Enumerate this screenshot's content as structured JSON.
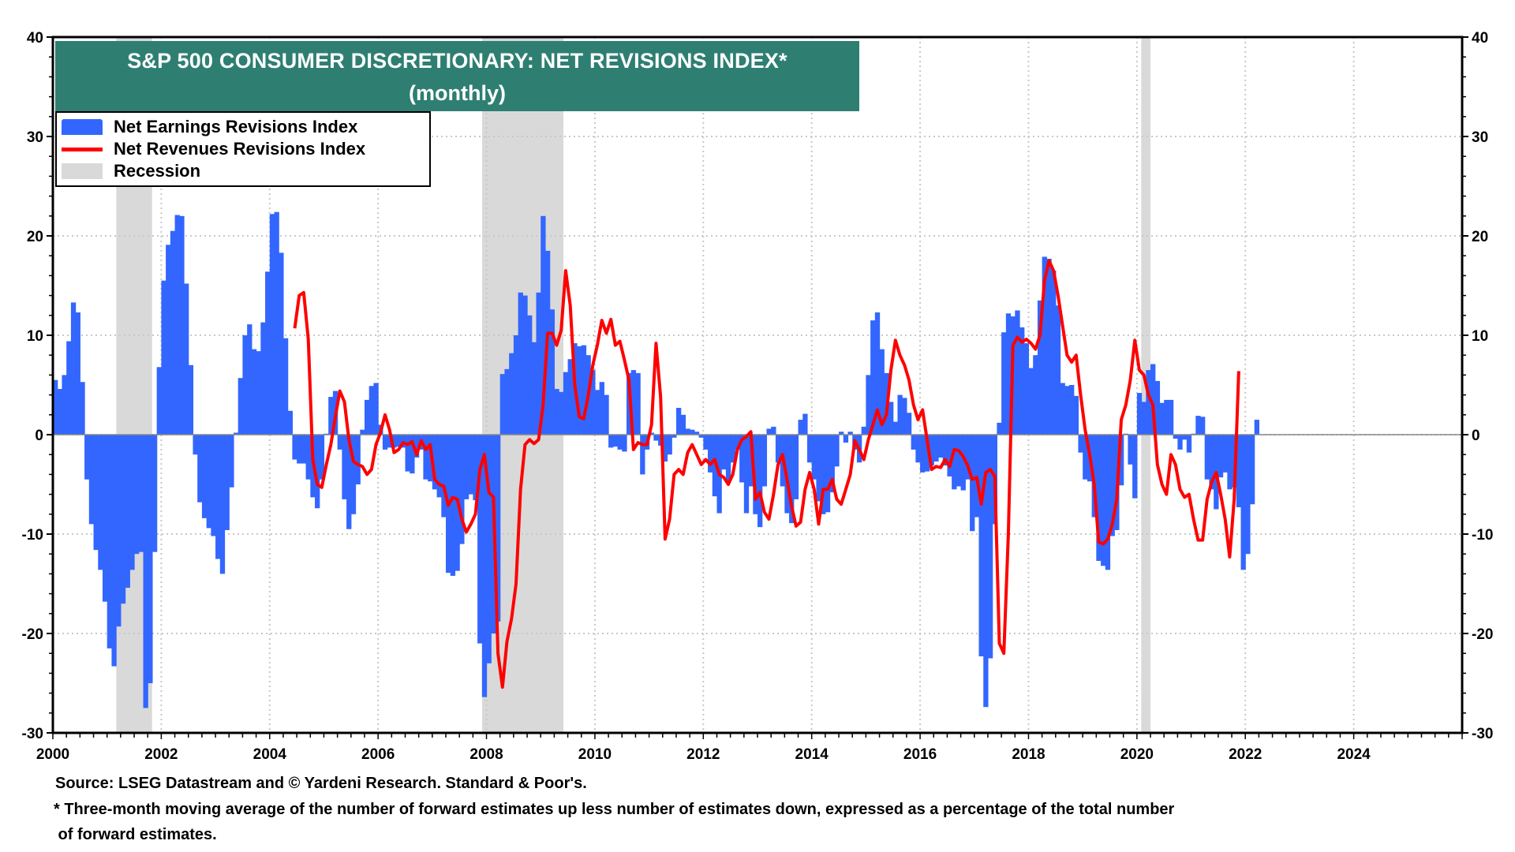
{
  "chart_data": {
    "type": "bar",
    "title": "S&P 500 CONSUMER DISCRETIONARY: NET REVISIONS INDEX*",
    "subtitle": "(monthly)",
    "xlabel": "",
    "ylabel": "",
    "ylim": [
      -30,
      40
    ],
    "xlim": [
      2000.0,
      2026.0
    ],
    "grid": true,
    "legend_position": "top-left",
    "yticks": [
      -30,
      -20,
      -10,
      0,
      10,
      20,
      30,
      40
    ],
    "ytick_labels": [
      "-30",
      "-20",
      "-10",
      "0",
      "10",
      "20",
      "30",
      "40"
    ],
    "xticks": [
      2000,
      2002,
      2004,
      2006,
      2008,
      2010,
      2012,
      2014,
      2016,
      2018,
      2020,
      2022,
      2024
    ],
    "xtick_labels": [
      "2000",
      "2002",
      "2004",
      "2006",
      "2008",
      "2010",
      "2012",
      "2014",
      "2016",
      "2018",
      "2020",
      "2022",
      "2024"
    ],
    "legend": [
      {
        "name": "Net Earnings Revisions Index",
        "type": "bar",
        "color": "#3366ff"
      },
      {
        "name": "Net Revenues Revisions Index",
        "type": "line",
        "color": "#ff0000"
      },
      {
        "name": "Recession",
        "type": "shade",
        "color": "#d9d9d9"
      }
    ],
    "recessions": [
      {
        "start": 2001.17,
        "end": 2001.83
      },
      {
        "start": 2007.92,
        "end": 2009.42
      },
      {
        "start": 2020.08,
        "end": 2020.25
      }
    ],
    "series": [
      {
        "name": "Net Earnings Revisions Index",
        "type": "bar",
        "start": 2000.0,
        "frequency": "monthly",
        "values": [
          5.5,
          4.6,
          6.0,
          9.4,
          13.3,
          12.3,
          5.3,
          -4.5,
          -9.0,
          -11.6,
          -13.6,
          -16.8,
          -21.5,
          -23.3,
          -19.3,
          -17.0,
          -15.4,
          -13.6,
          -12.0,
          -11.8,
          -27.5,
          -25.0,
          -11.8,
          6.8,
          15.5,
          19.1,
          20.5,
          22.1,
          22.0,
          15.2,
          7.0,
          -2.0,
          -6.8,
          -8.4,
          -9.4,
          -10.2,
          -12.5,
          -14.0,
          -9.6,
          -5.3,
          0.2,
          5.7,
          10.0,
          11.1,
          8.6,
          8.4,
          11.3,
          16.4,
          22.2,
          22.4,
          18.3,
          9.7,
          2.4,
          -2.5,
          -2.9,
          -2.9,
          -4.5,
          -6.3,
          -7.4,
          -4.5,
          0.1,
          3.8,
          4.4,
          -1.5,
          -6.5,
          -9.5,
          -8.0,
          -5.0,
          0.5,
          3.5,
          4.9,
          5.2,
          1.0,
          -1.5,
          -1.3,
          -1.3,
          -1.2,
          -1.3,
          -3.7,
          -3.9,
          -2.3,
          -1.5,
          -4.5,
          -4.7,
          -5.5,
          -6.3,
          -8.3,
          -13.9,
          -14.2,
          -13.7,
          -11.0,
          -6.5,
          -6.0,
          -6.6,
          -21.0,
          -26.4,
          -23.0,
          -20.0,
          -18.8,
          6.1,
          6.6,
          8.2,
          10.0,
          14.3,
          14.0,
          12.0,
          9.3,
          14.3,
          22.0,
          18.5,
          12.6,
          4.6,
          4.3,
          6.3,
          7.6,
          9.2,
          8.9,
          9.0,
          8.0,
          6.5,
          4.5,
          5.3,
          4.0,
          -1.3,
          -1.2,
          -1.5,
          -1.7,
          6.2,
          6.5,
          6.2,
          -4.0,
          -1.5,
          0.2,
          -0.6,
          -1.1,
          -2.7,
          -2.0,
          -0.3,
          2.7,
          2.0,
          0.6,
          0.5,
          0.3,
          -0.3,
          -1.5,
          -3.8,
          -6.2,
          -7.9,
          -3.5,
          -4.8,
          -2.8,
          -1.5,
          -4.8,
          -7.9,
          -5.2,
          -8.0,
          -9.3,
          -5.2,
          0.6,
          0.8,
          -2.8,
          -5.2,
          -7.9,
          -8.9,
          -6.5,
          1.5,
          2.1,
          -2.8,
          -4.5,
          -6.7,
          -8.0,
          -7.8,
          -5.8,
          -3.2,
          0.3,
          -0.8,
          0.3,
          -1.5,
          -2.8,
          0.8,
          6.0,
          11.5,
          12.3,
          8.6,
          6.2,
          3.3,
          1.3,
          4.0,
          3.7,
          2.2,
          -1.5,
          -2.8,
          -3.8,
          -3.7,
          -3.1,
          -2.7,
          -2.3,
          -3.1,
          -4.2,
          -5.5,
          -5.2,
          -5.6,
          -4.5,
          -9.7,
          -8.3,
          -22.3,
          -27.4,
          -22.5,
          -9.0,
          1.2,
          10.3,
          12.2,
          11.9,
          12.5,
          10.8,
          9.2,
          6.7,
          8.0,
          13.5,
          17.9,
          17.7,
          16.5,
          13.0,
          5.2,
          4.9,
          5.0,
          3.9,
          -1.8,
          -4.5,
          -4.7,
          -8.3,
          -12.7,
          -13.2,
          -13.6,
          -10.2,
          -9.6,
          -5.1,
          0.1,
          -3.0,
          -6.4,
          4.2,
          3.3,
          6.5,
          7.1,
          5.4,
          3.2,
          3.5,
          3.5,
          -0.4,
          -1.5,
          -0.5,
          -1.8,
          0.1,
          1.9,
          1.8,
          -4.5,
          -5.5,
          -7.5,
          -4.3,
          -3.8,
          -5.5,
          -5.3,
          -7.3,
          -13.6,
          -12.0,
          -7.0,
          1.5
        ]
      },
      {
        "name": "Net Revenues Revisions Index",
        "type": "line",
        "start": 2004.42,
        "frequency": "monthly",
        "values": [
          10.7,
          14.0,
          14.3,
          9.6,
          -2.5,
          -5.0,
          -5.3,
          -3.0,
          -1.0,
          1.8,
          4.4,
          3.3,
          -0.5,
          -2.7,
          -3.0,
          -3.2,
          -4.0,
          -3.5,
          -1.0,
          0.2,
          2.0,
          0.5,
          -1.8,
          -1.5,
          -0.8,
          -1.0,
          -0.7,
          -2.0,
          -0.6,
          -1.5,
          -1.0,
          -4.5,
          -5.0,
          -5.2,
          -7.1,
          -6.3,
          -6.5,
          -8.5,
          -9.8,
          -9.0,
          -8.0,
          -3.5,
          -2.0,
          -5.8,
          -6.3,
          -22.0,
          -25.4,
          -20.8,
          -18.5,
          -15.0,
          -5.5,
          -1.0,
          -0.5,
          -0.9,
          -0.5,
          3.0,
          10.2,
          10.2,
          9.0,
          10.5,
          16.5,
          13.0,
          5.0,
          1.8,
          1.6,
          4.0,
          7.0,
          9.0,
          11.5,
          10.2,
          11.6,
          9.0,
          9.4,
          7.5,
          5.5,
          -1.5,
          -0.8,
          -1.0,
          -1.0,
          1.0,
          9.2,
          3.8,
          -10.5,
          -8.5,
          -4.0,
          -3.5,
          -4.0,
          -1.8,
          -1.0,
          -2.0,
          -3.0,
          -2.5,
          -3.0,
          -2.5,
          -4.0,
          -4.3,
          -5.0,
          -4.0,
          -1.5,
          -0.5,
          -0.2,
          0.3,
          -6.5,
          -5.8,
          -7.8,
          -8.5,
          -6.0,
          -3.0,
          -2.0,
          -4.5,
          -7.2,
          -9.2,
          -8.8,
          -5.5,
          -3.8,
          -5.5,
          -9.0,
          -5.5,
          -5.5,
          -4.5,
          -6.5,
          -7.0,
          -5.5,
          -4.0,
          -0.6,
          -1.5,
          -2.5,
          -0.5,
          1.0,
          2.5,
          1.0,
          2.0,
          6.5,
          9.5,
          8.0,
          7.0,
          5.5,
          3.0,
          1.5,
          2.5,
          -0.5,
          -3.5,
          -3.2,
          -3.3,
          -2.5,
          -3.2,
          -1.5,
          -1.6,
          -2.2,
          -3.1,
          -4.5,
          -4.3,
          -7.0,
          -3.8,
          -3.5,
          -4.2,
          -21.0,
          -22.0,
          -10.0,
          9.0,
          9.8,
          9.3,
          9.6,
          9.2,
          8.6,
          10.0,
          15.5,
          17.5,
          16.5,
          14.0,
          11.0,
          8.0,
          7.3,
          8.0,
          4.0,
          0.5,
          -2.0,
          -5.0,
          -10.8,
          -11.0,
          -10.5,
          -9.0,
          -6.5,
          1.5,
          3.0,
          5.5,
          9.5,
          6.5,
          6.0,
          4.0,
          3.0,
          -3.0,
          -5.0,
          -6.0,
          -2.0,
          -3.0,
          -5.5,
          -6.3,
          -6.0,
          -8.5,
          -10.6,
          -10.6,
          -6.5,
          -4.8,
          -3.8,
          -6.0,
          -8.5,
          -12.3,
          -6.5,
          6.4
        ]
      }
    ]
  },
  "footer": {
    "source": "Source: LSEG Datastream and © Yardeni Research. Standard & Poor's.",
    "note_line1": "* Three-month moving average of the number of forward estimates up less number of estimates down, expressed as a percentage of the total number",
    "note_line2": " of forward estimates."
  }
}
